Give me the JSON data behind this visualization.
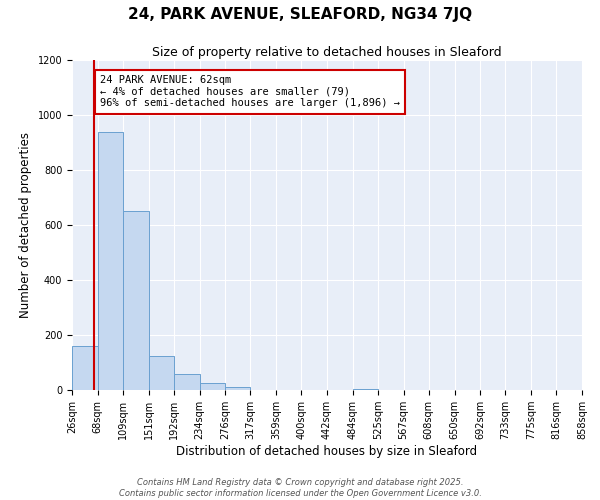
{
  "title": "24, PARK AVENUE, SLEAFORD, NG34 7JQ",
  "subtitle": "Size of property relative to detached houses in Sleaford",
  "xlabel": "Distribution of detached houses by size in Sleaford",
  "ylabel": "Number of detached properties",
  "bin_edges": [
    26,
    68,
    109,
    151,
    192,
    234,
    276,
    317,
    359,
    400,
    442,
    484,
    525,
    567,
    608,
    650,
    692,
    733,
    775,
    816,
    858
  ],
  "bin_labels": [
    "26sqm",
    "68sqm",
    "109sqm",
    "151sqm",
    "192sqm",
    "234sqm",
    "276sqm",
    "317sqm",
    "359sqm",
    "400sqm",
    "442sqm",
    "484sqm",
    "525sqm",
    "567sqm",
    "608sqm",
    "650sqm",
    "692sqm",
    "733sqm",
    "775sqm",
    "816sqm",
    "858sqm"
  ],
  "bar_heights": [
    160,
    940,
    650,
    125,
    58,
    25,
    10,
    0,
    0,
    0,
    0,
    5,
    0,
    0,
    0,
    0,
    0,
    0,
    0,
    0
  ],
  "bar_color": "#c5d8f0",
  "bar_edge_color": "#6aa0d0",
  "vertical_line_x": 62,
  "vertical_line_color": "#cc0000",
  "annotation_title": "24 PARK AVENUE: 62sqm",
  "annotation_line1": "← 4% of detached houses are smaller (79)",
  "annotation_line2": "96% of semi-detached houses are larger (1,896) →",
  "annotation_box_color": "#cc0000",
  "ylim": [
    0,
    1200
  ],
  "yticks": [
    0,
    200,
    400,
    600,
    800,
    1000,
    1200
  ],
  "background_color": "#e8eef8",
  "footer1": "Contains HM Land Registry data © Crown copyright and database right 2025.",
  "footer2": "Contains public sector information licensed under the Open Government Licence v3.0.",
  "title_fontsize": 11,
  "subtitle_fontsize": 9,
  "axis_label_fontsize": 8.5,
  "tick_fontsize": 7,
  "annotation_fontsize": 7.5,
  "footer_fontsize": 6
}
